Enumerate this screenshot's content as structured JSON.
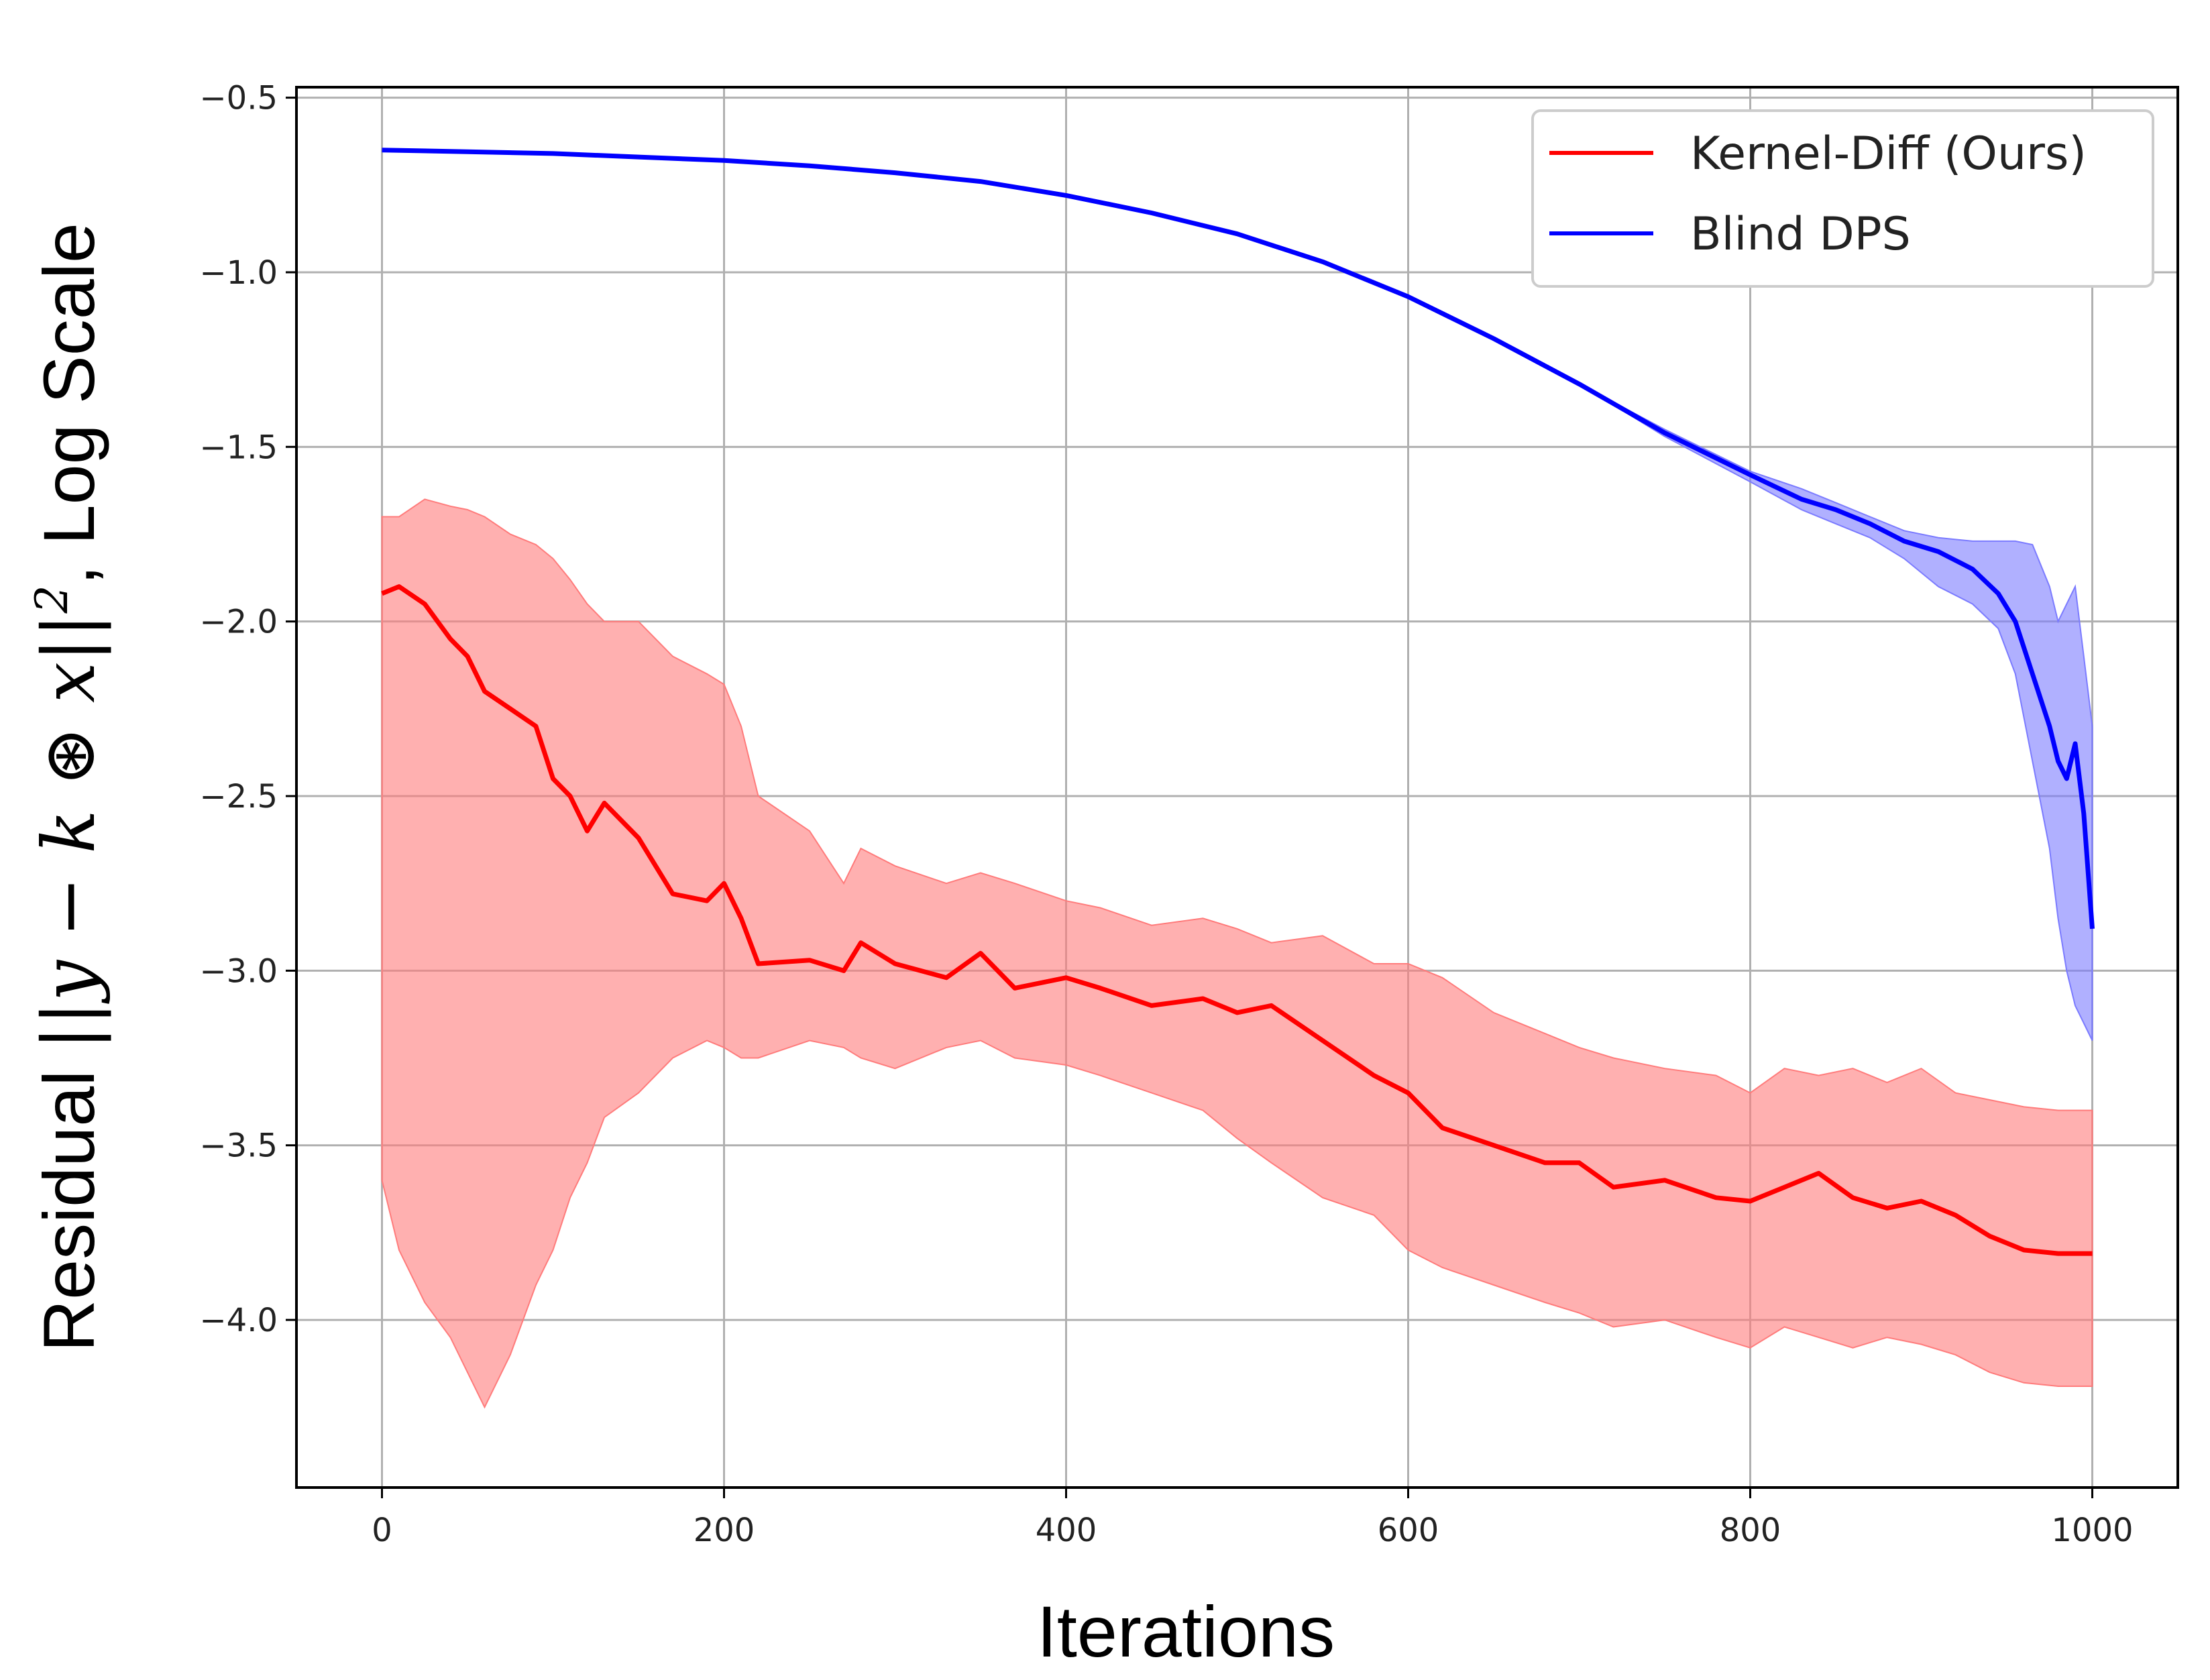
{
  "chart_data": {
    "type": "line",
    "xlabel": "Iterations",
    "ylabel": {
      "prefix": "Residual ",
      "math": "||y − k ⊛ x||",
      "superscript": "2",
      "suffix": ", Log Scale"
    },
    "xlim": [
      -50,
      1050
    ],
    "ylim": [
      -4.48,
      -0.47
    ],
    "xticks": [
      0,
      200,
      400,
      600,
      800,
      1000
    ],
    "xtick_labels": [
      "0",
      "200",
      "400",
      "600",
      "800",
      "1000"
    ],
    "yticks": [
      -0.5,
      -1.0,
      -1.5,
      -2.0,
      -2.5,
      -3.0,
      -3.5,
      -4.0
    ],
    "ytick_labels": [
      "−0.5",
      "−1.0",
      "−1.5",
      "−2.0",
      "−2.5",
      "−3.0",
      "−3.5",
      "−4.0"
    ],
    "grid": true,
    "legend_position": "top-right",
    "series": [
      {
        "name": "Kernel-Diff (Ours)",
        "color": "#ff0000",
        "band_color": "#ff7b7b",
        "x": [
          0,
          10,
          25,
          40,
          50,
          60,
          75,
          90,
          100,
          110,
          120,
          130,
          150,
          170,
          190,
          200,
          210,
          220,
          250,
          270,
          280,
          300,
          330,
          350,
          370,
          400,
          420,
          450,
          480,
          500,
          520,
          550,
          580,
          600,
          620,
          650,
          680,
          700,
          720,
          750,
          780,
          800,
          820,
          840,
          860,
          880,
          900,
          920,
          940,
          960,
          980,
          1000
        ],
        "mean": [
          -1.92,
          -1.9,
          -1.95,
          -2.05,
          -2.1,
          -2.2,
          -2.25,
          -2.3,
          -2.45,
          -2.5,
          -2.6,
          -2.52,
          -2.62,
          -2.78,
          -2.8,
          -2.75,
          -2.85,
          -2.98,
          -2.97,
          -3.0,
          -2.92,
          -2.98,
          -3.02,
          -2.95,
          -3.05,
          -3.02,
          -3.05,
          -3.1,
          -3.08,
          -3.12,
          -3.1,
          -3.2,
          -3.3,
          -3.35,
          -3.45,
          -3.5,
          -3.55,
          -3.55,
          -3.62,
          -3.6,
          -3.65,
          -3.66,
          -3.62,
          -3.58,
          -3.65,
          -3.68,
          -3.66,
          -3.7,
          -3.76,
          -3.8,
          -3.81,
          -3.81
        ],
        "upper": [
          -1.7,
          -1.7,
          -1.65,
          -1.67,
          -1.68,
          -1.7,
          -1.75,
          -1.78,
          -1.82,
          -1.88,
          -1.95,
          -2.0,
          -2.0,
          -2.1,
          -2.15,
          -2.18,
          -2.3,
          -2.5,
          -2.6,
          -2.75,
          -2.65,
          -2.7,
          -2.75,
          -2.72,
          -2.75,
          -2.8,
          -2.82,
          -2.87,
          -2.85,
          -2.88,
          -2.92,
          -2.9,
          -2.98,
          -2.98,
          -3.02,
          -3.12,
          -3.18,
          -3.22,
          -3.25,
          -3.28,
          -3.3,
          -3.35,
          -3.28,
          -3.3,
          -3.28,
          -3.32,
          -3.28,
          -3.35,
          -3.37,
          -3.39,
          -3.4,
          -3.4
        ],
        "lower": [
          -3.6,
          -3.8,
          -3.95,
          -4.05,
          -4.15,
          -4.25,
          -4.1,
          -3.9,
          -3.8,
          -3.65,
          -3.55,
          -3.42,
          -3.35,
          -3.25,
          -3.2,
          -3.22,
          -3.25,
          -3.25,
          -3.2,
          -3.22,
          -3.25,
          -3.28,
          -3.22,
          -3.2,
          -3.25,
          -3.27,
          -3.3,
          -3.35,
          -3.4,
          -3.48,
          -3.55,
          -3.65,
          -3.7,
          -3.8,
          -3.85,
          -3.9,
          -3.95,
          -3.98,
          -4.02,
          -4.0,
          -4.05,
          -4.08,
          -4.02,
          -4.05,
          -4.08,
          -4.05,
          -4.07,
          -4.1,
          -4.15,
          -4.18,
          -4.19,
          -4.19
        ]
      },
      {
        "name": "Blind DPS",
        "color": "#0000ff",
        "band_color": "#7b7bff",
        "x": [
          0,
          50,
          100,
          150,
          200,
          250,
          300,
          350,
          400,
          450,
          500,
          550,
          600,
          650,
          700,
          750,
          800,
          830,
          850,
          870,
          890,
          910,
          930,
          945,
          955,
          965,
          975,
          980,
          985,
          990,
          995,
          1000
        ],
        "mean": [
          -0.65,
          -0.655,
          -0.66,
          -0.67,
          -0.68,
          -0.695,
          -0.715,
          -0.74,
          -0.78,
          -0.83,
          -0.89,
          -0.97,
          -1.07,
          -1.19,
          -1.32,
          -1.46,
          -1.58,
          -1.65,
          -1.68,
          -1.72,
          -1.77,
          -1.8,
          -1.85,
          -1.92,
          -2.0,
          -2.15,
          -2.3,
          -2.4,
          -2.45,
          -2.35,
          -2.55,
          -2.88
        ],
        "upper": [
          -0.65,
          -0.655,
          -0.66,
          -0.67,
          -0.68,
          -0.695,
          -0.715,
          -0.74,
          -0.78,
          -0.83,
          -0.89,
          -0.97,
          -1.07,
          -1.19,
          -1.32,
          -1.45,
          -1.57,
          -1.62,
          -1.66,
          -1.7,
          -1.74,
          -1.76,
          -1.77,
          -1.77,
          -1.77,
          -1.78,
          -1.9,
          -2.0,
          -1.95,
          -1.9,
          -2.1,
          -2.3
        ],
        "lower": [
          -0.65,
          -0.655,
          -0.66,
          -0.67,
          -0.68,
          -0.695,
          -0.715,
          -0.74,
          -0.78,
          -0.83,
          -0.89,
          -0.97,
          -1.07,
          -1.19,
          -1.32,
          -1.47,
          -1.6,
          -1.68,
          -1.72,
          -1.76,
          -1.82,
          -1.9,
          -1.95,
          -2.02,
          -2.15,
          -2.4,
          -2.65,
          -2.85,
          -3.0,
          -3.1,
          -3.15,
          -3.2
        ]
      }
    ]
  }
}
